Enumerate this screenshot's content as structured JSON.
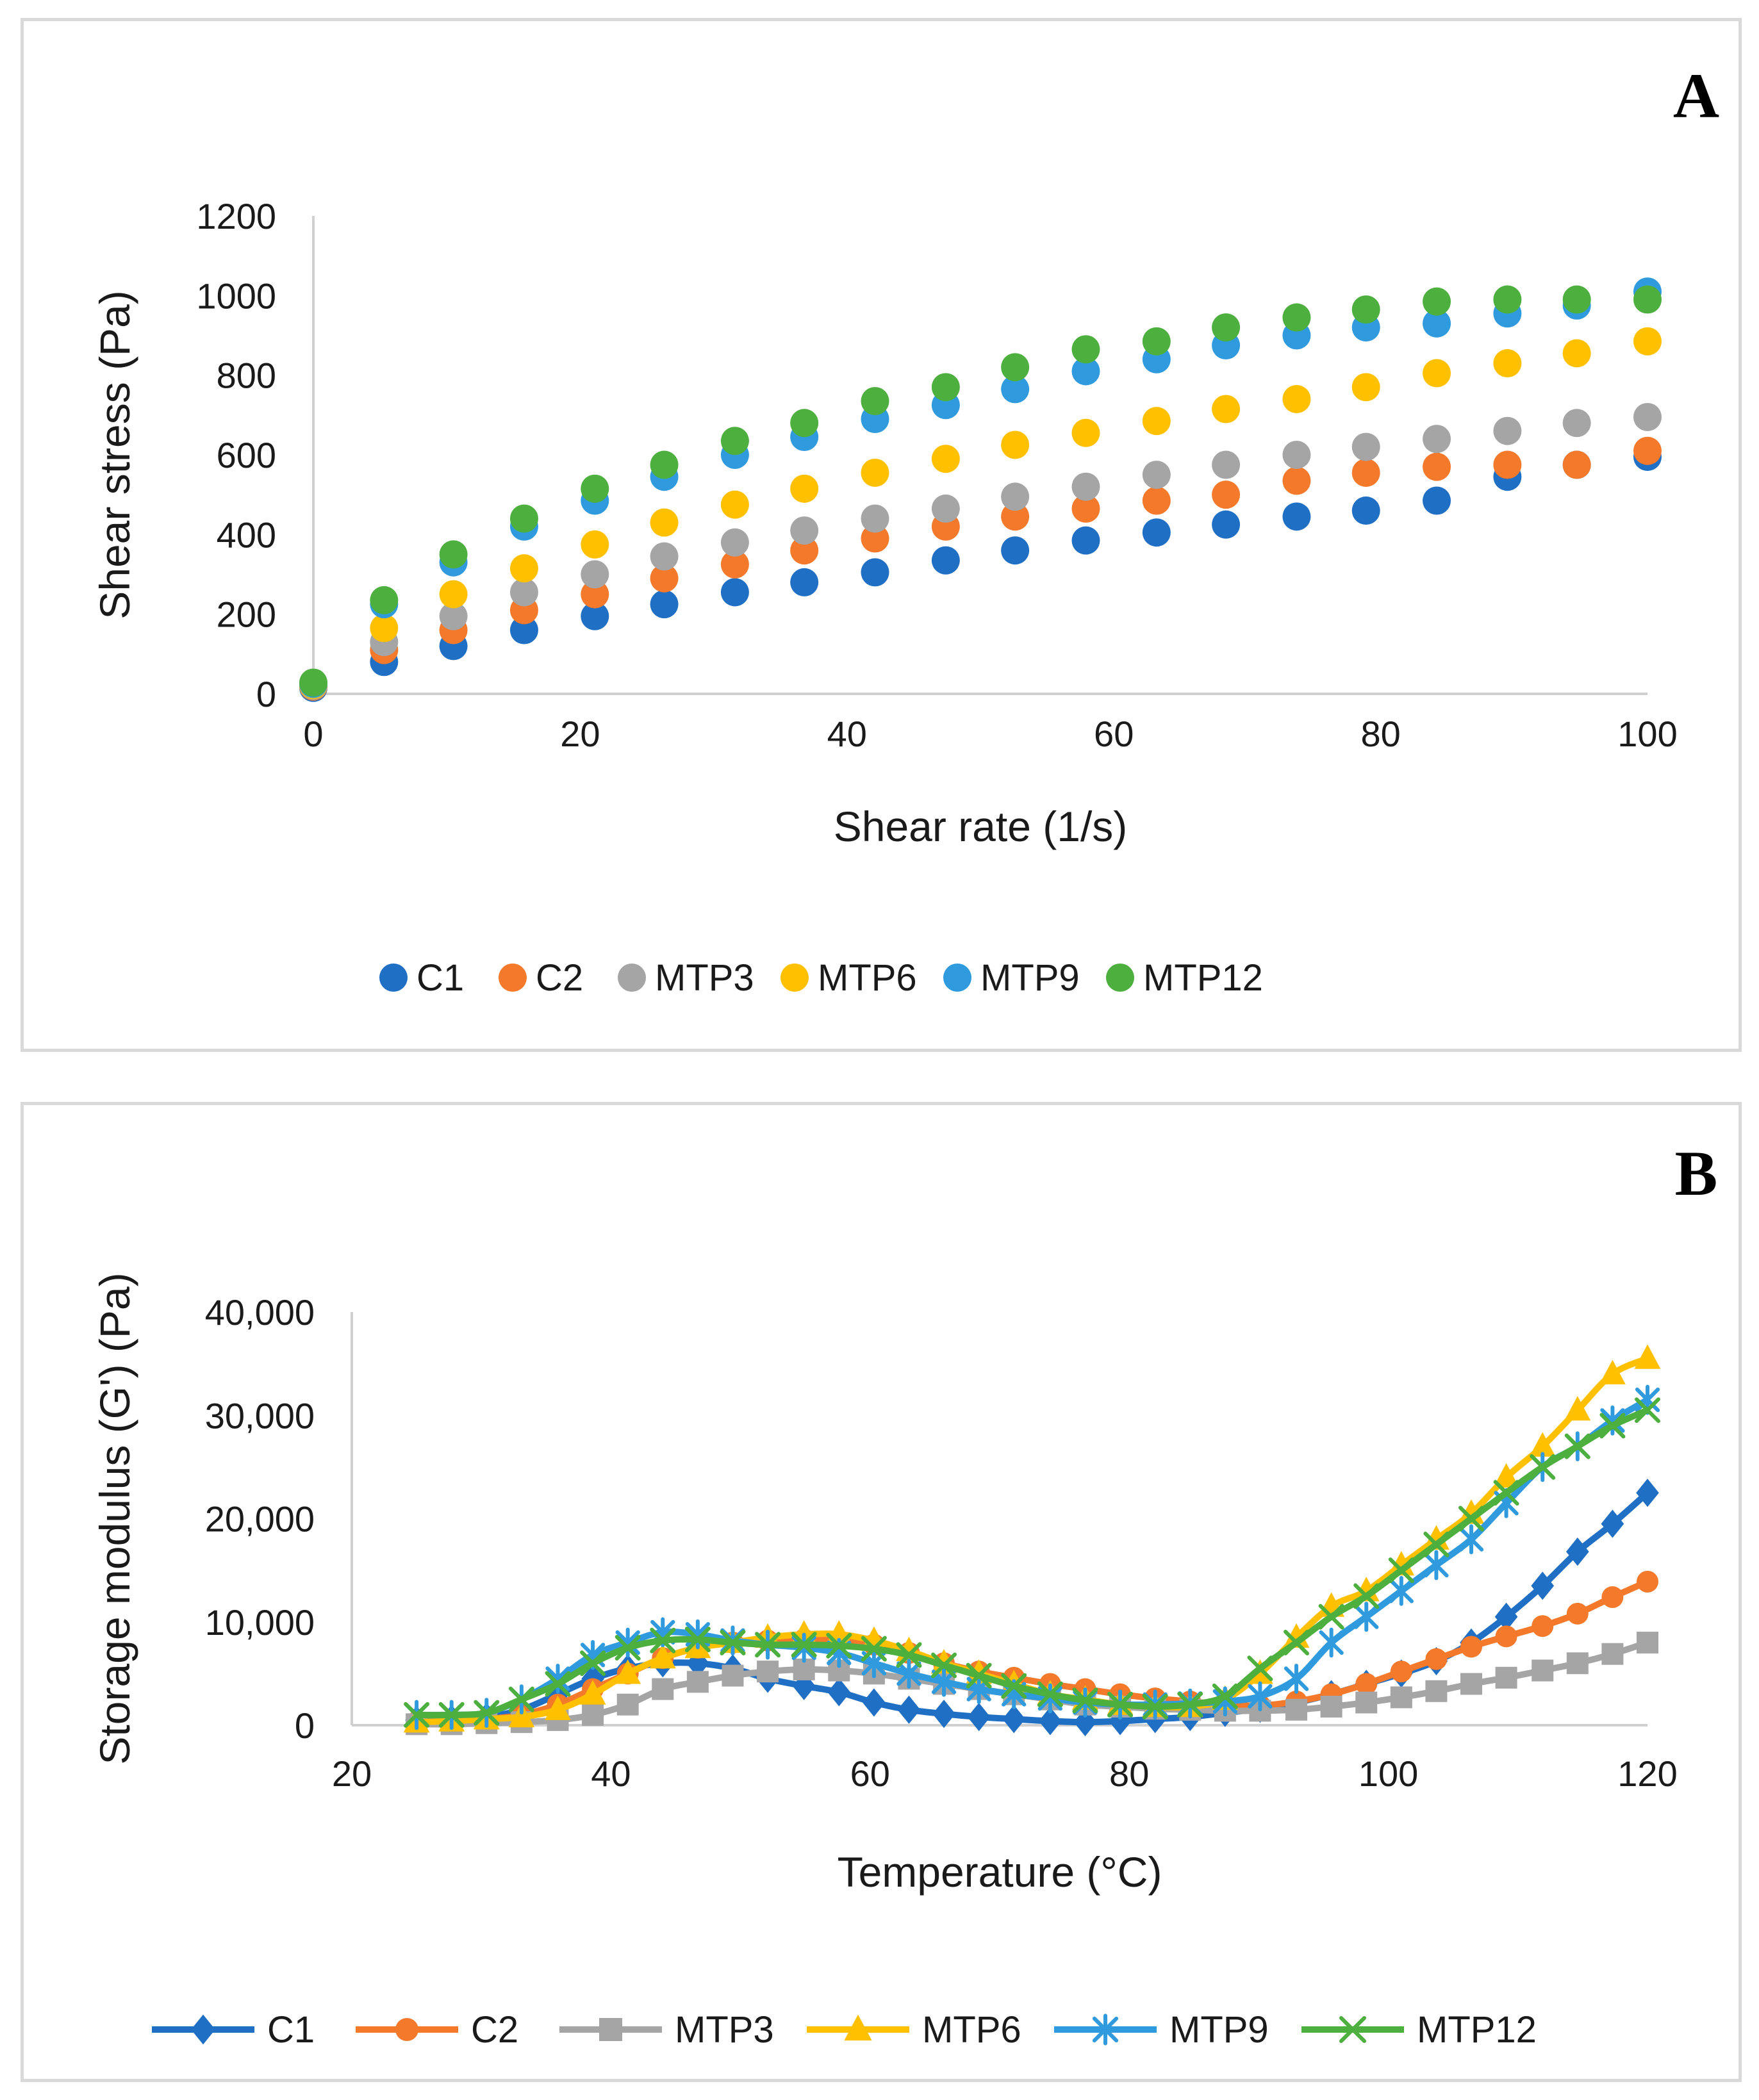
{
  "chart_data": [
    {
      "panel_label": "A",
      "type": "scatter",
      "title": "",
      "xlabel": "Shear rate (1/s)",
      "ylabel": "Shear stress (Pa)",
      "xlim": [
        0,
        100
      ],
      "ylim": [
        0,
        1200
      ],
      "xticks": [
        0,
        20,
        40,
        60,
        80,
        100
      ],
      "yticks": [
        0,
        200,
        400,
        600,
        800,
        1000,
        1200
      ],
      "xtick_labels": [
        "0",
        "20",
        "40",
        "60",
        "80",
        "100"
      ],
      "ytick_labels": [
        "0",
        "200",
        "400",
        "600",
        "800",
        "1000",
        "1200"
      ],
      "legend_position": "bottom",
      "x": [
        0,
        5.3,
        10.5,
        15.8,
        21.1,
        26.3,
        31.6,
        36.8,
        42.1,
        47.4,
        52.6,
        57.9,
        63.2,
        68.4,
        73.7,
        78.9,
        84.2,
        89.5,
        94.7,
        100
      ],
      "series": [
        {
          "name": "C1",
          "color": "#1F6FC5",
          "values": [
            15,
            80,
            120,
            160,
            195,
            225,
            255,
            280,
            305,
            335,
            360,
            385,
            405,
            425,
            445,
            460,
            485,
            545,
            575,
            595
          ]
        },
        {
          "name": "C2",
          "color": "#F4792B",
          "values": [
            18,
            110,
            160,
            210,
            250,
            290,
            325,
            360,
            390,
            420,
            445,
            465,
            485,
            500,
            535,
            555,
            570,
            575,
            575,
            610
          ]
        },
        {
          "name": "MTP3",
          "color": "#A5A5A5",
          "values": [
            20,
            130,
            195,
            255,
            300,
            345,
            380,
            410,
            440,
            465,
            495,
            520,
            550,
            575,
            600,
            620,
            640,
            660,
            680,
            695
          ]
        },
        {
          "name": "MTP6",
          "color": "#FFC000",
          "values": [
            22,
            165,
            250,
            315,
            375,
            430,
            475,
            515,
            555,
            590,
            625,
            655,
            685,
            715,
            740,
            770,
            805,
            830,
            855,
            885
          ]
        },
        {
          "name": "MTP9",
          "color": "#2F9BDE",
          "values": [
            25,
            225,
            330,
            420,
            485,
            545,
            600,
            645,
            690,
            725,
            765,
            810,
            840,
            875,
            900,
            920,
            930,
            955,
            975,
            1010
          ]
        },
        {
          "name": "MTP12",
          "color": "#4CAF3E",
          "values": [
            28,
            235,
            350,
            440,
            515,
            575,
            635,
            680,
            735,
            770,
            820,
            865,
            885,
            920,
            945,
            965,
            985,
            990,
            990,
            990
          ]
        }
      ]
    },
    {
      "panel_label": "B",
      "type": "line",
      "title": "",
      "xlabel": "Temperature (°C)",
      "ylabel": "Storage modulus (G') (Pa)",
      "xlim": [
        20,
        120
      ],
      "ylim": [
        0,
        40000
      ],
      "xticks": [
        20,
        40,
        60,
        80,
        100,
        120
      ],
      "yticks": [
        0,
        10000,
        20000,
        30000,
        40000
      ],
      "xtick_labels": [
        "20",
        "40",
        "60",
        "80",
        "100",
        "120"
      ],
      "ytick_labels": [
        "0",
        "10,000",
        "20,000",
        "30,000",
        "40,000"
      ],
      "legend_position": "bottom",
      "x": [
        25,
        27.7,
        30.4,
        33.1,
        35.9,
        38.6,
        41.3,
        44.0,
        46.7,
        49.4,
        52.1,
        54.9,
        57.6,
        60.3,
        63.0,
        65.7,
        68.4,
        71.1,
        73.9,
        76.6,
        79.3,
        82.0,
        84.7,
        87.4,
        90.1,
        92.9,
        95.6,
        98.3,
        101.0,
        103.7,
        106.4,
        109.1,
        111.9,
        114.6,
        117.3,
        120
      ],
      "series": [
        {
          "name": "C1",
          "marker": "diamond",
          "color": "#1F6FC5",
          "values": [
            500,
            600,
            800,
            1500,
            3000,
            4500,
            5500,
            6000,
            6000,
            5500,
            4500,
            3800,
            3200,
            2200,
            1500,
            1100,
            800,
            600,
            400,
            300,
            400,
            600,
            800,
            1200,
            1600,
            2200,
            3000,
            4000,
            5000,
            6200,
            8000,
            10500,
            13500,
            16800,
            19500,
            22500
          ]
        },
        {
          "name": "C2",
          "marker": "circle",
          "color": "#F4792B",
          "values": [
            300,
            400,
            600,
            1000,
            2000,
            3500,
            5000,
            6500,
            7500,
            8000,
            8200,
            8300,
            8200,
            7800,
            7000,
            6000,
            5200,
            4600,
            4000,
            3500,
            3000,
            2600,
            2300,
            2000,
            1900,
            2300,
            3000,
            4000,
            5200,
            6400,
            7600,
            8600,
            9600,
            10800,
            12400,
            13900
          ]
        },
        {
          "name": "MTP3",
          "marker": "square",
          "color": "#A5A5A5",
          "values": [
            100,
            100,
            200,
            300,
            500,
            1000,
            2000,
            3500,
            4200,
            4800,
            5200,
            5400,
            5300,
            5000,
            4500,
            4000,
            3500,
            3000,
            2500,
            2000,
            1800,
            1600,
            1500,
            1400,
            1400,
            1500,
            1800,
            2200,
            2700,
            3300,
            4000,
            4600,
            5300,
            6000,
            6900,
            8000
          ]
        },
        {
          "name": "MTP6",
          "marker": "triangle",
          "color": "#FFC000",
          "values": [
            300,
            400,
            600,
            800,
            1500,
            3000,
            5000,
            6500,
            7500,
            8000,
            8500,
            8800,
            8800,
            8200,
            7200,
            6000,
            5000,
            4000,
            3000,
            2500,
            2000,
            1800,
            1800,
            2500,
            5000,
            8500,
            11500,
            13000,
            15500,
            18000,
            20500,
            24000,
            27000,
            30500,
            34000,
            35500
          ]
        },
        {
          "name": "MTP9",
          "marker": "star",
          "color": "#2F9BDE",
          "values": [
            1000,
            1000,
            1200,
            2500,
            4500,
            6800,
            8000,
            9000,
            8800,
            8200,
            7800,
            7500,
            7000,
            6000,
            5000,
            4200,
            3500,
            3000,
            2600,
            2200,
            2000,
            2000,
            2100,
            2300,
            2800,
            4500,
            8000,
            10500,
            13000,
            15500,
            18000,
            21500,
            25000,
            27000,
            29500,
            31500
          ]
        },
        {
          "name": "MTP12",
          "marker": "x",
          "color": "#4CAF3E",
          "values": [
            1000,
            1000,
            1200,
            2500,
            4000,
            6000,
            7500,
            8200,
            8300,
            8000,
            7800,
            7800,
            7700,
            7400,
            6800,
            5800,
            4800,
            3800,
            3000,
            2400,
            2000,
            1800,
            2000,
            2800,
            5500,
            8000,
            10500,
            12500,
            15000,
            17500,
            20000,
            22500,
            25000,
            27000,
            29000,
            30500
          ]
        }
      ]
    }
  ]
}
